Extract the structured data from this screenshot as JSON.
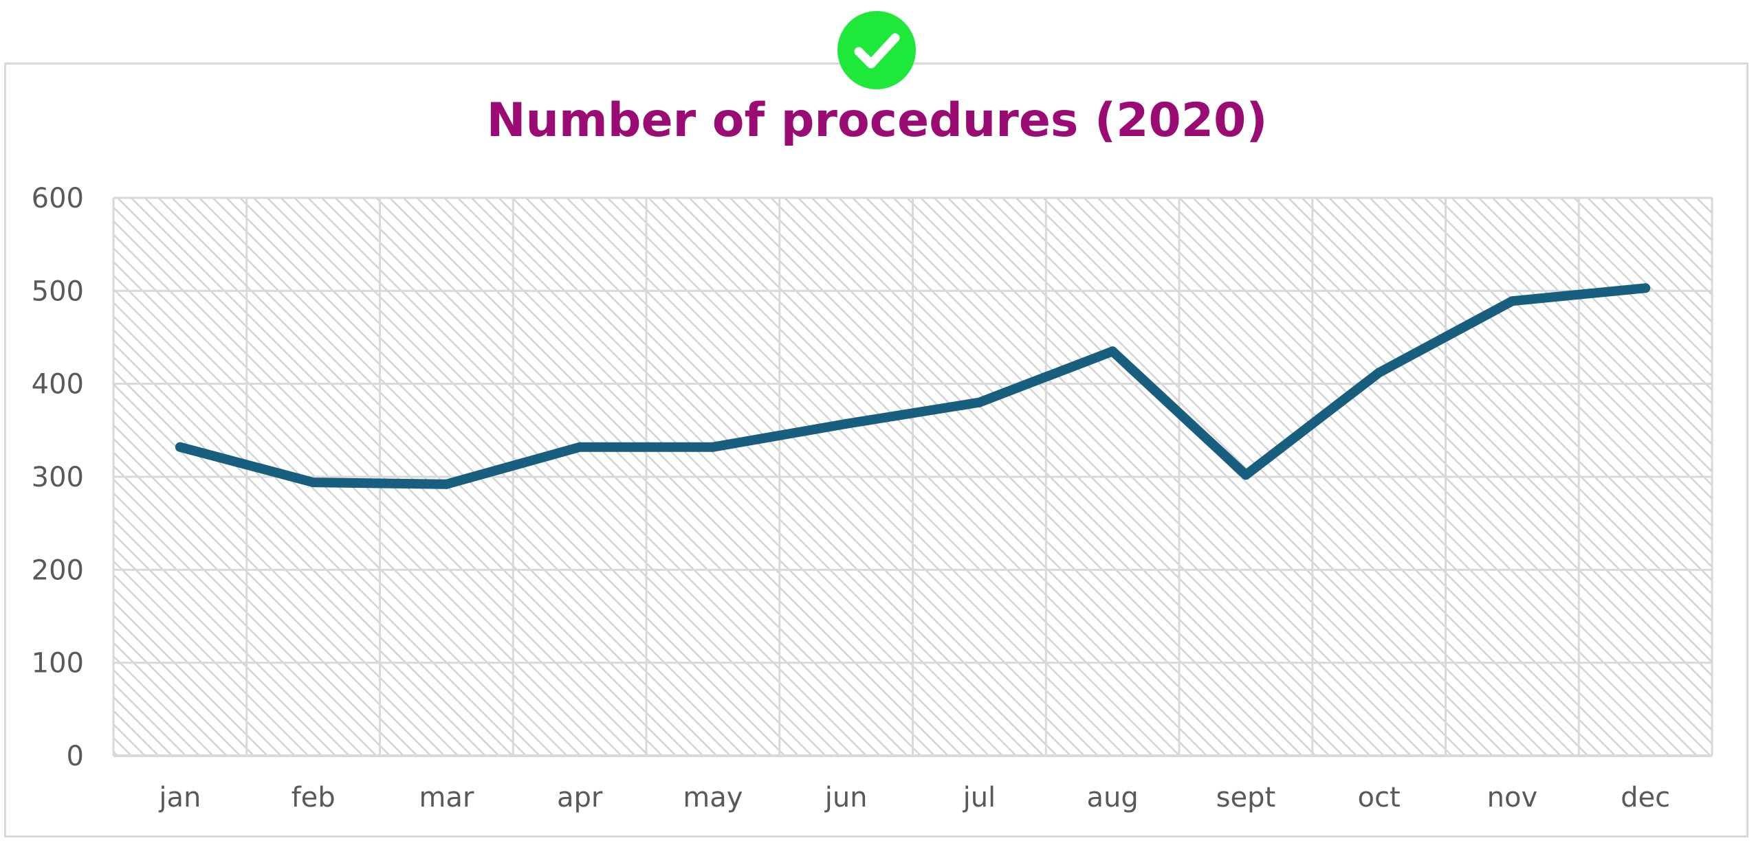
{
  "colors": {
    "title": "#9b0b74",
    "line": "#185e7e",
    "badge": "#1ee83a",
    "badge_check": "#ffffff",
    "grid": "#d9d9d9",
    "tick_text": "#595959",
    "plot_hatch": "#d4d4d4"
  },
  "badge": {
    "icon": "check-circle-icon"
  },
  "chart_data": {
    "type": "line",
    "title": "Number of procedures (2020)",
    "xlabel": "",
    "ylabel": "",
    "categories": [
      "jan",
      "feb",
      "mar",
      "apr",
      "may",
      "jun",
      "jul",
      "aug",
      "sept",
      "oct",
      "nov",
      "dec"
    ],
    "series": [
      {
        "values": [
          332,
          294,
          292,
          332,
          332,
          357,
          380,
          435,
          302,
          412,
          489,
          503
        ]
      }
    ],
    "ylim": [
      0,
      600
    ],
    "yticks": [
      0,
      100,
      200,
      300,
      400,
      500,
      600
    ],
    "grid": true,
    "legend": "none",
    "plot_background": "diagonal-hatch"
  }
}
